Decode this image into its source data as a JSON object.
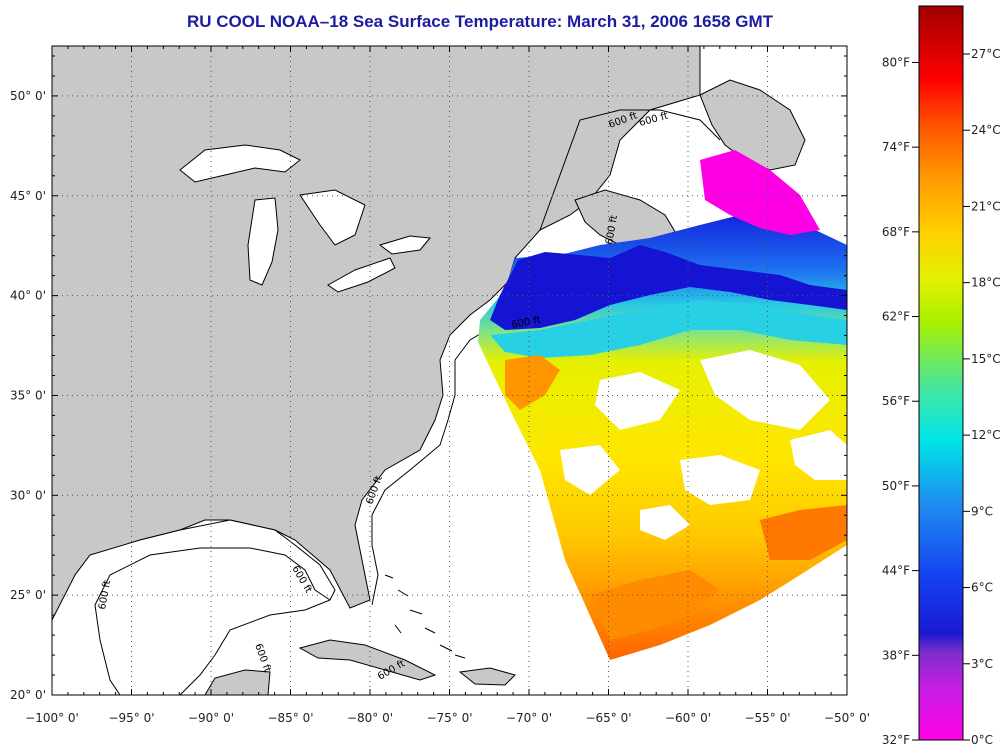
{
  "title": "RU COOL  NOAA–18  Sea Surface Temperature:  March 31, 2006 1658 GMT",
  "map": {
    "longitude_range": [
      -100,
      -50
    ],
    "latitude_range": [
      20,
      52.5
    ],
    "longitude_labels": [
      "−100° 0'",
      "−95° 0'",
      "−90° 0'",
      "−85° 0'",
      "−80° 0'",
      "−75° 0'",
      "−70° 0'",
      "−65° 0'",
      "−60° 0'",
      "−55° 0'",
      "−50° 0'"
    ],
    "latitude_labels": [
      "20° 0'",
      "25° 0'",
      "30° 0'",
      "35° 0'",
      "40° 0'",
      "45° 0'",
      "50° 0'"
    ],
    "land_color": "#c8c8c8",
    "isobath_labels": [
      "600 ft",
      "600 ft",
      "600 ft",
      "600 ft",
      "600 ft",
      "600 ft",
      "600 ft",
      "600 ft",
      "600 ft"
    ]
  },
  "colorbar": {
    "fahrenheit_labels": [
      "32°F",
      "38°F",
      "44°F",
      "50°F",
      "56°F",
      "62°F",
      "68°F",
      "74°F",
      "80°F"
    ],
    "celsius_labels": [
      "0°C",
      "3°C",
      "6°C",
      "9°C",
      "12°C",
      "15°C",
      "18°C",
      "21°C",
      "24°C",
      "27°C"
    ],
    "colors": [
      "#ff00e6",
      "#7c2cc8",
      "#1426dc",
      "#1e8cf0",
      "#00e6e6",
      "#46e6a0",
      "#d2f000",
      "#ffd000",
      "#ff8c00",
      "#ff3c00",
      "#ff0000",
      "#a00000"
    ]
  }
}
